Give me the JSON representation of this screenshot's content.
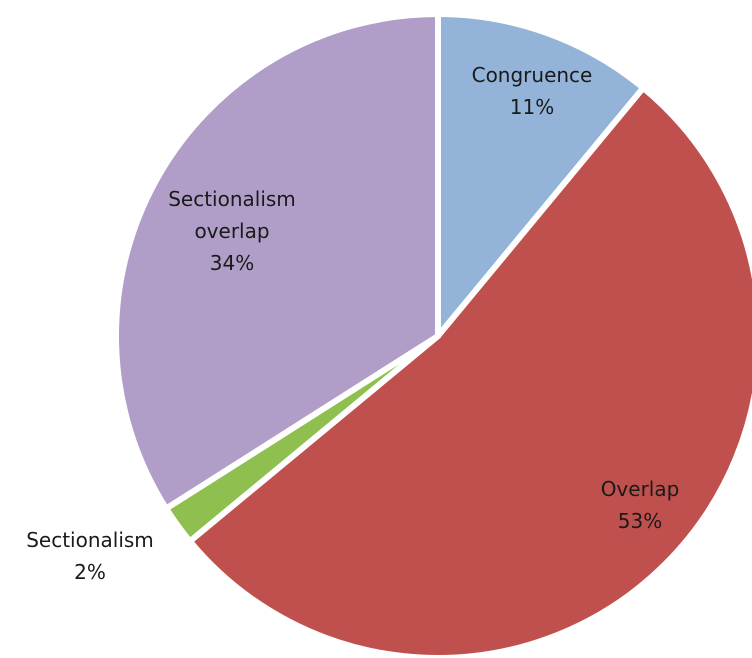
{
  "chart_data": {
    "type": "pie",
    "title": "",
    "start_angle_deg": 0,
    "direction": "clockwise",
    "slices": [
      {
        "label": "Congruence",
        "value": 11,
        "value_label": "11%",
        "color": "#93b3d8",
        "label_lines": [
          "Congruence",
          "11%"
        ]
      },
      {
        "label": "Overlap",
        "value": 53,
        "value_label": "53%",
        "color": "#c0504d",
        "label_lines": [
          "Overlap",
          "53%"
        ]
      },
      {
        "label": "Sectionalism",
        "value": 2,
        "value_label": "2%",
        "color": "#8fbf4f",
        "label_lines": [
          "Sectionalism",
          "2%"
        ]
      },
      {
        "label": "Sectionalism overlap",
        "value": 34,
        "value_label": "34%",
        "color": "#b09ec8",
        "label_lines": [
          "Sectionalism",
          "overlap",
          "34%"
        ]
      }
    ]
  }
}
